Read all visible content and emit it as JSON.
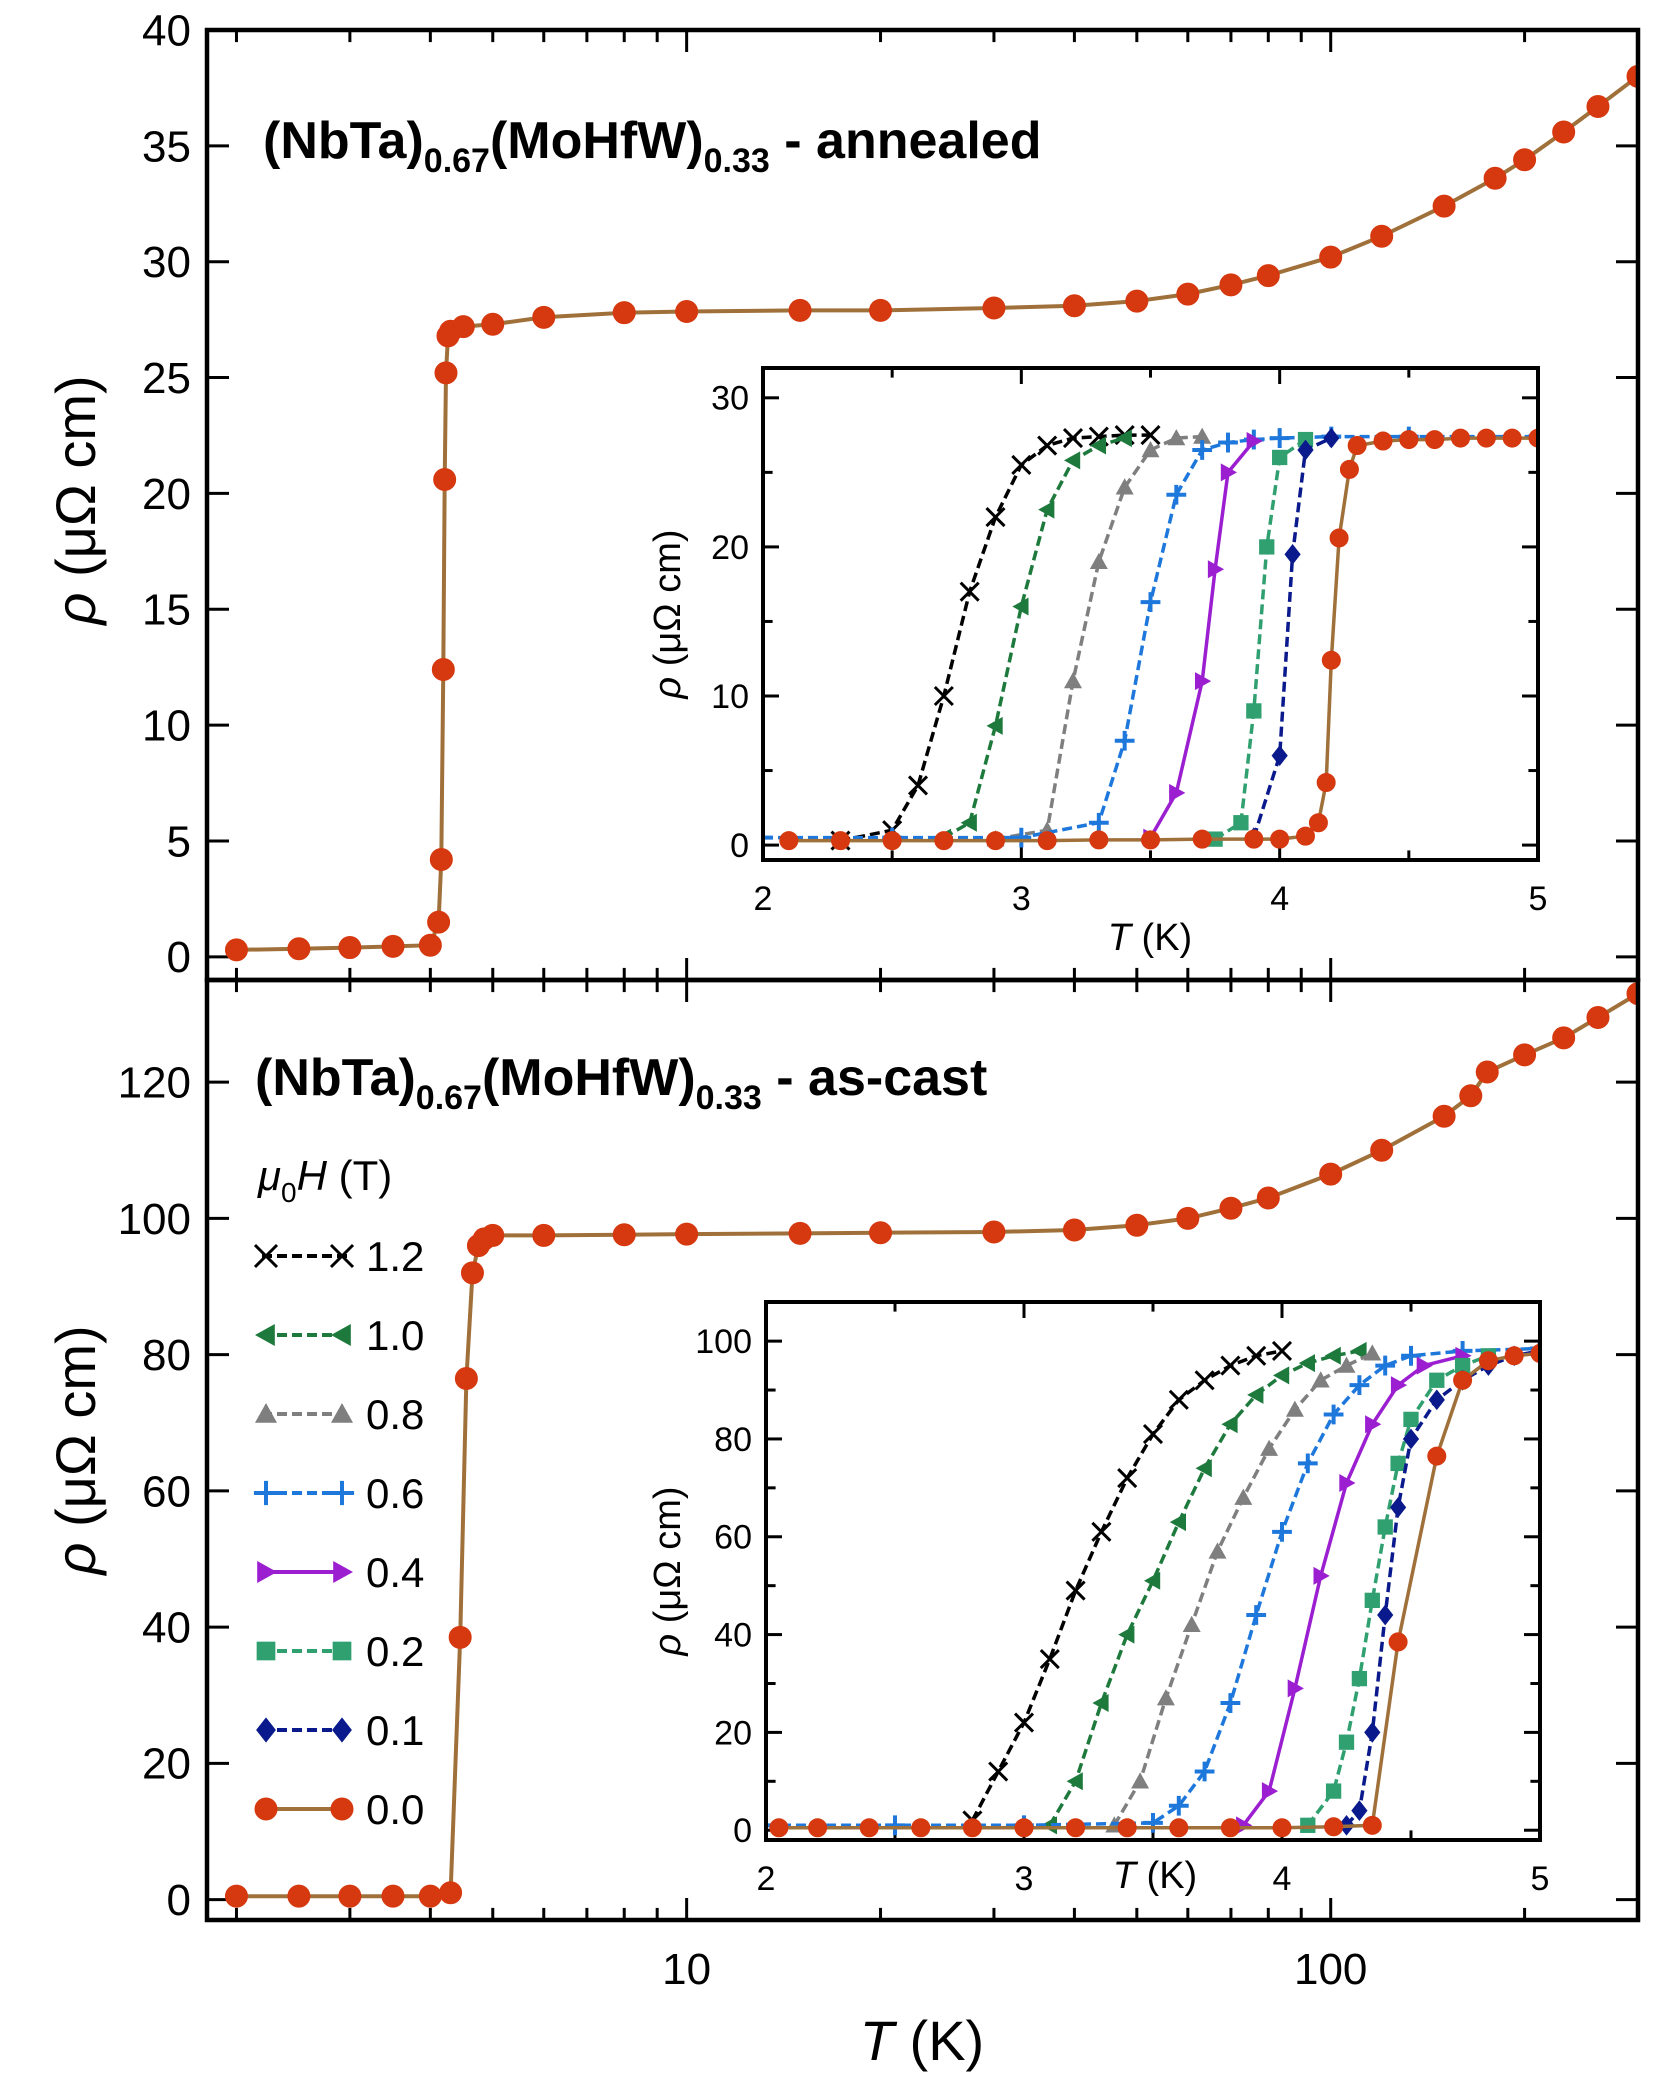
{
  "chart_data": [
    {
      "type": "scatter",
      "panel": "top",
      "title": "(NbTa)0.67(MoHfW)0.33 - annealed",
      "title_parts": {
        "base1": "(NbTa)",
        "sub1": "0.67",
        "base2": "(MoHfW)",
        "sub2": "0.33",
        "suffix": " - annealed"
      },
      "xscale": "log",
      "xlim": [
        1.8,
        300
      ],
      "ylim": [
        -1,
        40
      ],
      "yticks": [
        0,
        5,
        10,
        15,
        20,
        25,
        30,
        35,
        40
      ],
      "ylabel": "ρ (μΩ cm)",
      "series": [
        {
          "name": "0.0",
          "x": [
            2.0,
            2.5,
            3.0,
            3.5,
            4.0,
            4.12,
            4.16,
            4.19,
            4.21,
            4.23,
            4.26,
            4.3,
            4.5,
            5,
            6,
            8,
            10,
            15,
            20,
            30,
            40,
            50,
            60,
            70,
            80,
            100,
            120,
            150,
            180,
            200,
            230,
            260,
            300
          ],
          "y": [
            0.3,
            0.35,
            0.4,
            0.45,
            0.5,
            1.5,
            4.2,
            12.4,
            20.6,
            25.2,
            26.8,
            27.0,
            27.2,
            27.3,
            27.6,
            27.8,
            27.85,
            27.9,
            27.9,
            28.0,
            28.1,
            28.3,
            28.6,
            29.0,
            29.4,
            30.2,
            31.1,
            32.4,
            33.6,
            34.4,
            35.6,
            36.7,
            38.0
          ]
        }
      ]
    },
    {
      "type": "scatter",
      "panel": "top-inset",
      "xlim": [
        2,
        5
      ],
      "ylim": [
        -1,
        32
      ],
      "xticks": [
        2,
        3,
        4,
        5
      ],
      "yticks": [
        0,
        10,
        20,
        30
      ],
      "xlabel": "T (K)",
      "ylabel": "ρ (μΩ cm)",
      "series": [
        {
          "name": "1.2",
          "x": [
            2.3,
            2.5,
            2.6,
            2.7,
            2.8,
            2.9,
            3.0,
            3.1,
            3.2,
            3.3,
            3.4,
            3.5
          ],
          "y": [
            0.3,
            1.0,
            4.0,
            10.0,
            17.0,
            22.0,
            25.5,
            26.8,
            27.3,
            27.4,
            27.5,
            27.5
          ]
        },
        {
          "name": "1.0",
          "x": [
            2.7,
            2.8,
            2.9,
            3.0,
            3.1,
            3.2,
            3.3,
            3.4
          ],
          "y": [
            0.5,
            1.5,
            8.0,
            16.0,
            22.5,
            25.8,
            26.8,
            27.3
          ]
        },
        {
          "name": "0.8",
          "x": [
            2.9,
            3.1,
            3.2,
            3.3,
            3.4,
            3.5,
            3.6,
            3.7
          ],
          "y": [
            0.4,
            1.0,
            11.0,
            19.0,
            24.0,
            26.5,
            27.3,
            27.4
          ]
        },
        {
          "name": "0.6",
          "x": [
            2.0,
            2.5,
            3.0,
            3.3,
            3.4,
            3.5,
            3.6,
            3.7,
            3.8,
            3.9,
            4.0,
            4.2,
            4.5,
            5.0
          ],
          "y": [
            0.5,
            0.5,
            0.5,
            1.5,
            7.0,
            16.3,
            23.5,
            26.5,
            27.0,
            27.2,
            27.3,
            27.4,
            27.4,
            27.4
          ]
        },
        {
          "name": "0.4",
          "x": [
            3.5,
            3.6,
            3.7,
            3.75,
            3.8,
            3.9
          ],
          "y": [
            0.5,
            3.5,
            11.0,
            18.5,
            25.0,
            27.1
          ]
        },
        {
          "name": "0.2",
          "x": [
            3.75,
            3.85,
            3.9,
            3.95,
            4.0,
            4.1
          ],
          "y": [
            0.4,
            1.5,
            9.0,
            20.0,
            26.0,
            27.2
          ]
        },
        {
          "name": "0.1",
          "x": [
            3.9,
            4.0,
            4.05,
            4.1,
            4.2
          ],
          "y": [
            0.5,
            6.0,
            19.5,
            26.5,
            27.3
          ]
        },
        {
          "name": "0.0",
          "x": [
            2.1,
            2.3,
            2.5,
            2.7,
            2.9,
            3.1,
            3.3,
            3.5,
            3.7,
            3.9,
            4.0,
            4.1,
            4.15,
            4.18,
            4.2,
            4.23,
            4.27,
            4.3,
            4.4,
            4.5,
            4.6,
            4.7,
            4.8,
            4.9,
            5.0
          ],
          "y": [
            0.3,
            0.3,
            0.3,
            0.3,
            0.3,
            0.3,
            0.35,
            0.35,
            0.4,
            0.4,
            0.4,
            0.6,
            1.5,
            4.2,
            12.4,
            20.6,
            25.2,
            26.8,
            27.1,
            27.2,
            27.2,
            27.3,
            27.3,
            27.3,
            27.3
          ]
        }
      ]
    },
    {
      "type": "scatter",
      "panel": "bottom",
      "title": "(NbTa)0.67(MoHfW)0.33 - as-cast",
      "title_parts": {
        "base1": "(NbTa)",
        "sub1": "0.67",
        "base2": "(MoHfW)",
        "sub2": "0.33",
        "suffix": " - as-cast"
      },
      "xscale": "log",
      "xlim": [
        1.8,
        300
      ],
      "ylim": [
        -3,
        135
      ],
      "xticks": [
        10,
        100
      ],
      "yticks": [
        0,
        20,
        40,
        60,
        80,
        100,
        120
      ],
      "xlabel": "T (K)",
      "ylabel": "ρ (μΩ cm)",
      "series": [
        {
          "name": "0.0",
          "x": [
            2.0,
            2.5,
            3.0,
            3.5,
            4.0,
            4.3,
            4.45,
            4.55,
            4.65,
            4.75,
            4.85,
            5.0,
            6,
            8,
            10,
            15,
            20,
            30,
            40,
            50,
            60,
            70,
            80,
            100,
            120,
            150,
            165,
            175,
            200,
            230,
            260,
            300
          ],
          "y": [
            0.5,
            0.5,
            0.5,
            0.5,
            0.5,
            1.0,
            38.5,
            76.5,
            92.0,
            96.0,
            97.0,
            97.5,
            97.5,
            97.6,
            97.7,
            97.8,
            97.9,
            98.0,
            98.3,
            99.0,
            100.0,
            101.5,
            103.0,
            106.5,
            110.0,
            115.0,
            118.0,
            121.5,
            124.0,
            126.5,
            129.5,
            133.0
          ]
        }
      ]
    },
    {
      "type": "scatter",
      "panel": "bottom-inset",
      "xlim": [
        2,
        5
      ],
      "ylim": [
        -2,
        108
      ],
      "xticks": [
        2,
        3,
        4,
        5
      ],
      "yticks": [
        0,
        20,
        40,
        60,
        80,
        100
      ],
      "xlabel": "T (K)",
      "ylabel": "ρ (μΩ cm)",
      "series": [
        {
          "name": "1.2",
          "x": [
            2.8,
            2.9,
            3.0,
            3.1,
            3.2,
            3.3,
            3.4,
            3.5,
            3.6,
            3.7,
            3.8,
            3.9,
            4.0
          ],
          "y": [
            2.0,
            12.0,
            22.0,
            35.0,
            49.0,
            61.0,
            72.0,
            81.0,
            88.0,
            92.0,
            95.0,
            97.0,
            98.0
          ]
        },
        {
          "name": "1.0",
          "x": [
            3.1,
            3.2,
            3.3,
            3.4,
            3.5,
            3.6,
            3.7,
            3.8,
            3.9,
            4.0,
            4.1,
            4.2,
            4.3
          ],
          "y": [
            1.0,
            10.0,
            26.0,
            40.0,
            51.0,
            63.0,
            74.0,
            83.0,
            89.0,
            93.0,
            95.5,
            97.0,
            98.0
          ]
        },
        {
          "name": "0.8",
          "x": [
            3.35,
            3.45,
            3.55,
            3.65,
            3.75,
            3.85,
            3.95,
            4.05,
            4.15,
            4.25,
            4.35
          ],
          "y": [
            1.0,
            10.0,
            27.0,
            42.0,
            57.0,
            68.0,
            78.0,
            86.0,
            92.0,
            95.0,
            97.5
          ]
        },
        {
          "name": "0.6",
          "x": [
            2.0,
            2.5,
            3.0,
            3.5,
            3.6,
            3.7,
            3.8,
            3.9,
            4.0,
            4.1,
            4.2,
            4.3,
            4.4,
            4.5,
            4.7,
            5.0
          ],
          "y": [
            1.0,
            1.0,
            1.0,
            1.5,
            5.0,
            12.0,
            26.0,
            44.0,
            61.0,
            75.0,
            85.0,
            91.0,
            95.0,
            97.0,
            98.0,
            98.5
          ]
        },
        {
          "name": "0.4",
          "x": [
            3.85,
            3.95,
            4.05,
            4.15,
            4.25,
            4.35,
            4.45,
            4.55,
            4.7
          ],
          "y": [
            1.0,
            8.0,
            29.0,
            52.0,
            71.0,
            83.0,
            91.0,
            95.0,
            97.0
          ]
        },
        {
          "name": "0.2",
          "x": [
            4.1,
            4.2,
            4.25,
            4.3,
            4.35,
            4.4,
            4.45,
            4.5,
            4.6,
            4.7,
            4.8
          ],
          "y": [
            1.0,
            8.0,
            18.0,
            31.0,
            47.0,
            62.0,
            75.0,
            84.0,
            92.0,
            95.0,
            97.0
          ]
        },
        {
          "name": "0.1",
          "x": [
            4.25,
            4.3,
            4.35,
            4.4,
            4.45,
            4.5,
            4.6,
            4.7,
            4.8,
            4.9,
            5.0
          ],
          "y": [
            1.0,
            4.0,
            20.0,
            44.0,
            66.0,
            80.0,
            88.0,
            92.0,
            95.0,
            97.0,
            98.0
          ]
        },
        {
          "name": "0.0",
          "x": [
            2.05,
            2.2,
            2.4,
            2.6,
            2.8,
            3.0,
            3.2,
            3.4,
            3.6,
            3.8,
            4.0,
            4.2,
            4.35,
            4.45,
            4.6,
            4.7,
            4.8,
            4.9,
            5.0
          ],
          "y": [
            0.5,
            0.5,
            0.5,
            0.5,
            0.5,
            0.5,
            0.5,
            0.5,
            0.5,
            0.5,
            0.5,
            0.7,
            1.0,
            38.5,
            76.5,
            92.0,
            96.0,
            97.0,
            97.5
          ]
        }
      ]
    }
  ],
  "legend": {
    "title_symbol": "μ",
    "title_sub": "0",
    "title_var": "H",
    "title_unit": " (T)",
    "entries": [
      {
        "label": "1.2",
        "marker": "cross",
        "color": "#000000",
        "dash": "10,5"
      },
      {
        "label": "1.0",
        "marker": "triangle-left",
        "color": "#1E7A3C",
        "dash": "10,5"
      },
      {
        "label": "0.8",
        "marker": "triangle-up",
        "color": "#7F7F7F",
        "dash": "10,5"
      },
      {
        "label": "0.6",
        "marker": "plus",
        "color": "#1E78DC",
        "dash": "10,5"
      },
      {
        "label": "0.4",
        "marker": "triangle-right",
        "color": "#9B1FD0",
        "dash": ""
      },
      {
        "label": "0.2",
        "marker": "square",
        "color": "#30A070",
        "dash": "10,5"
      },
      {
        "label": "0.1",
        "marker": "diamond",
        "color": "#0A1A8C",
        "dash": "10,5"
      },
      {
        "label": "0.0",
        "marker": "circle",
        "color": "#D6380F",
        "line_color": "#A0703A",
        "dash": ""
      }
    ]
  },
  "axis_labels": {
    "y_symbol": "ρ",
    "y_unit": " (μΩ cm)",
    "x_symbol": "T",
    "x_unit": " (K)"
  }
}
